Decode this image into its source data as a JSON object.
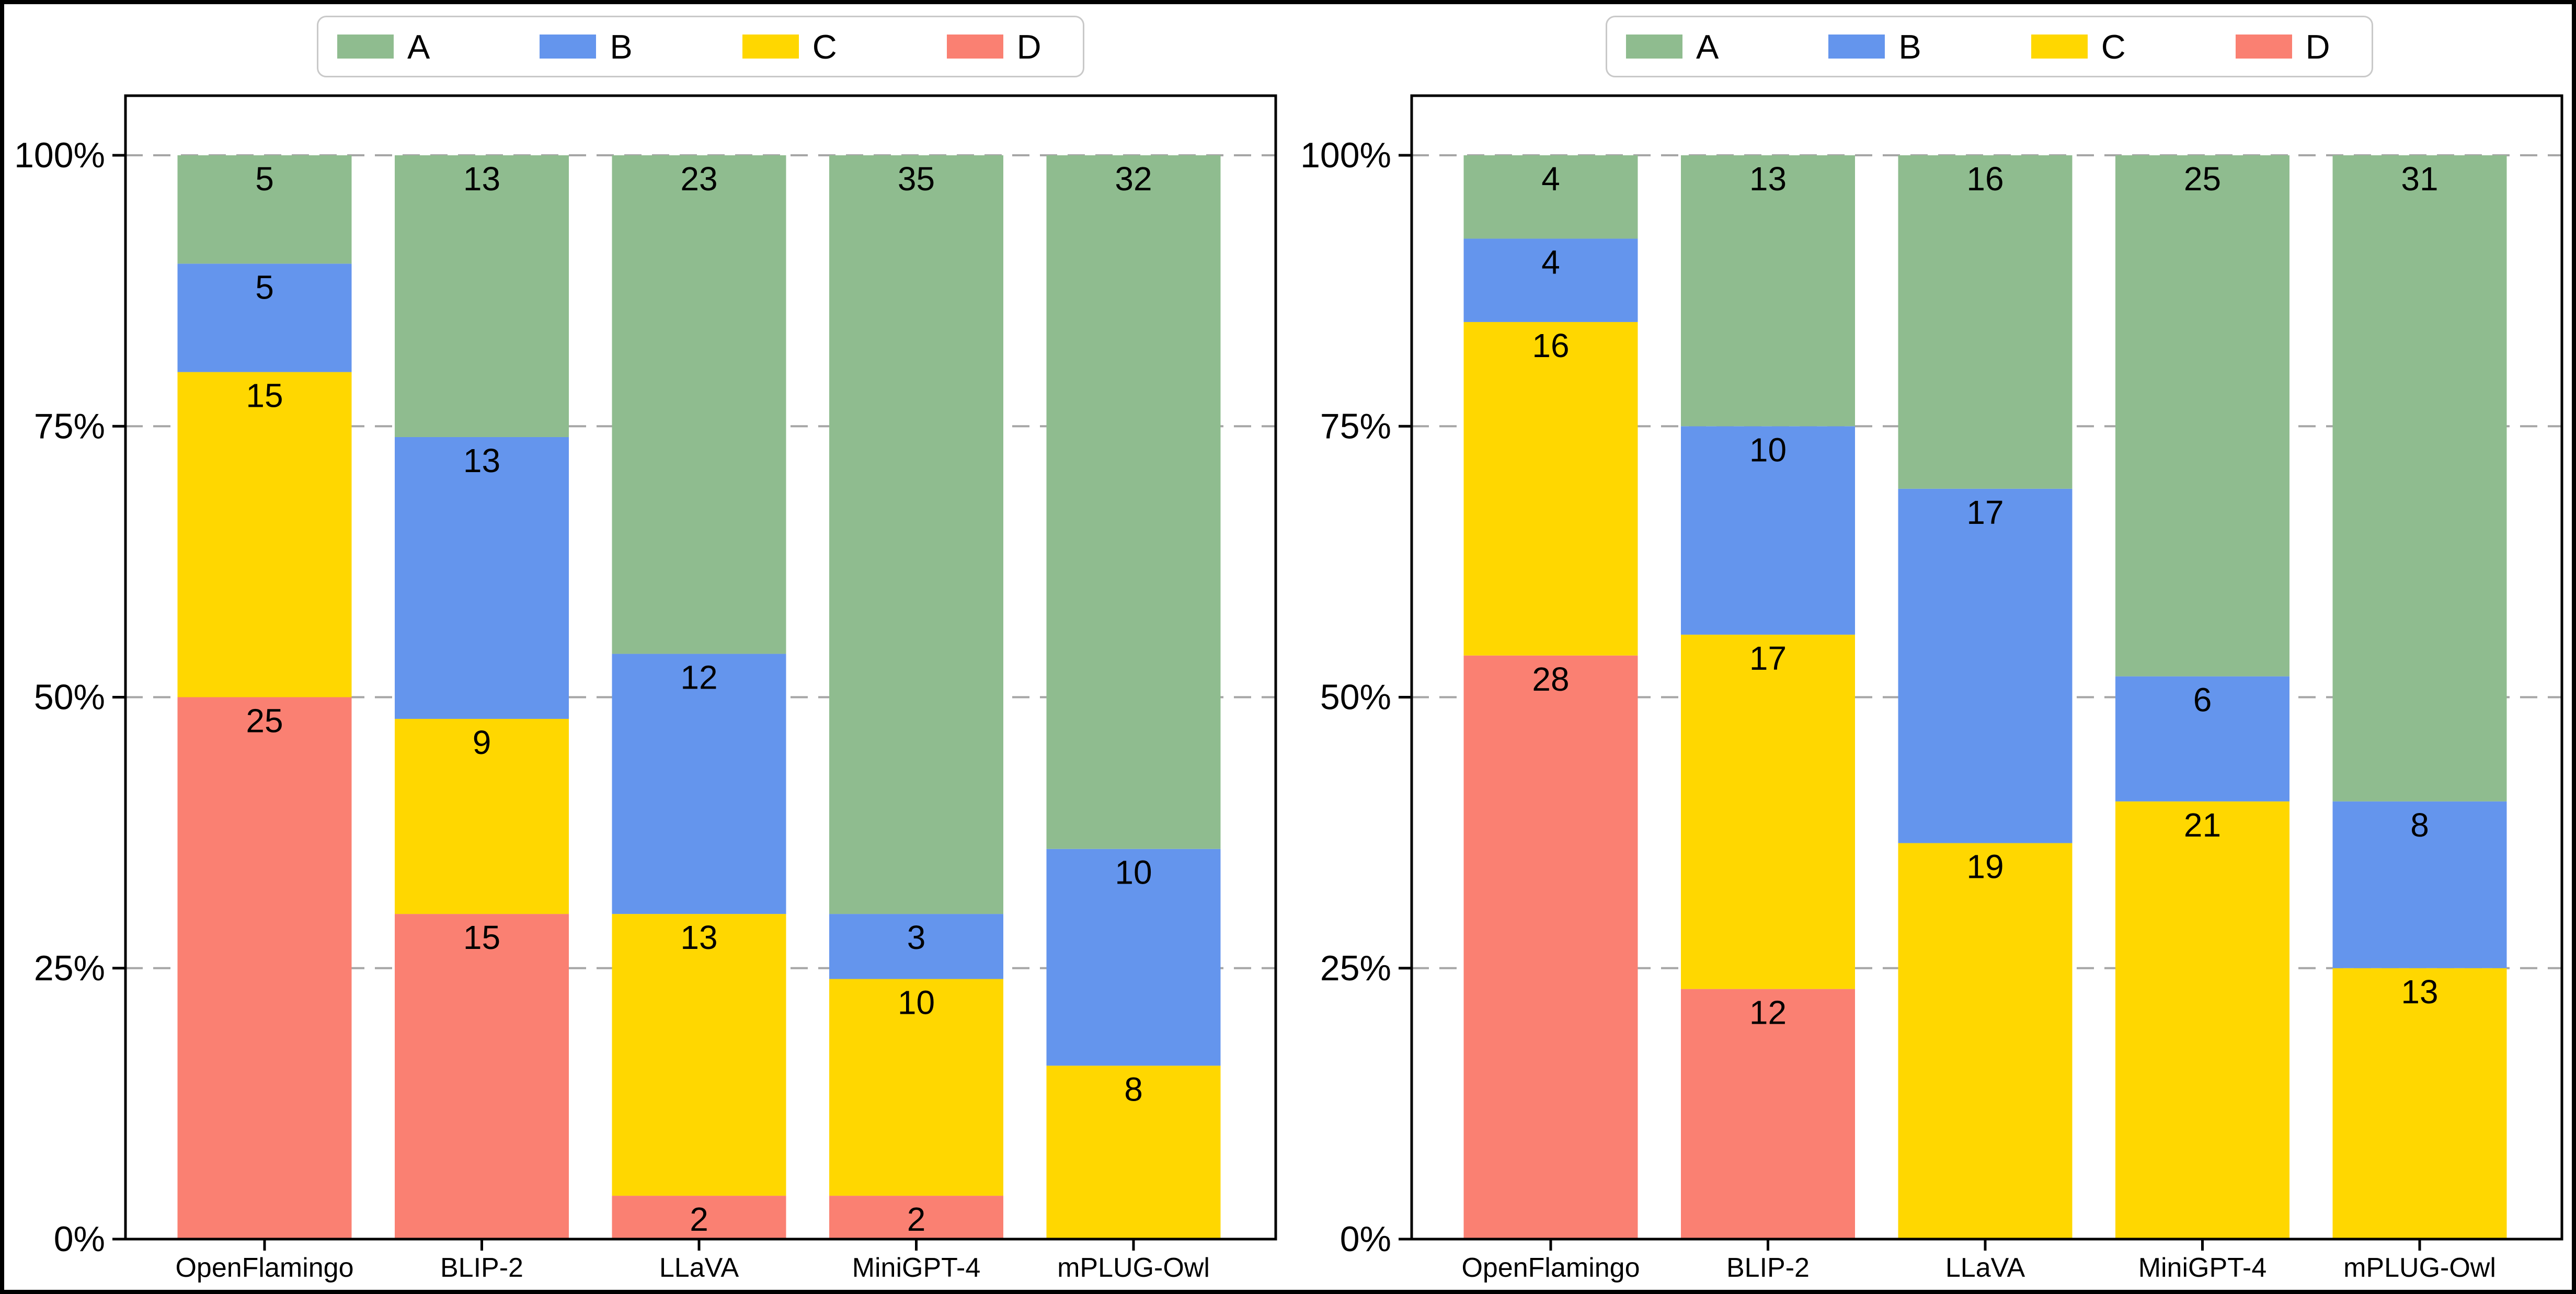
{
  "figure": {
    "background": "#ffffff",
    "border_color": "#000000"
  },
  "legend": {
    "labels": [
      "A",
      "B",
      "C",
      "D"
    ],
    "colors": [
      "#8fbc8f",
      "#6495ed",
      "#ffd700",
      "#fa8072"
    ],
    "position": "top-center"
  },
  "axis": {
    "yticks": [
      "0%",
      "25%",
      "50%",
      "75%",
      "100%"
    ],
    "ytick_percents": [
      0,
      25,
      50,
      75,
      100
    ],
    "grid_color": "#a6a6a6",
    "grid_style": "dashed",
    "spine_color": "#000000"
  },
  "chart_data": [
    {
      "type": "bar",
      "subtype": "stacked-percentage",
      "title": "",
      "xlabel": "",
      "ylabel": "",
      "categories": [
        "OpenFlamingo",
        "BLIP-2",
        "LLaVA",
        "MiniGPT-4",
        "mPLUG-Owl"
      ],
      "total_per_bar": 50,
      "ylim_percent": [
        0,
        105.5
      ],
      "grid": "horizontal dashed at 25/50/75/100%",
      "legend_position": "top-center",
      "stack_order_bottom_to_top": [
        "D",
        "C",
        "B",
        "A"
      ],
      "series": [
        {
          "name": "A",
          "color": "#8fbc8f",
          "values": [
            5,
            13,
            23,
            35,
            32
          ]
        },
        {
          "name": "B",
          "color": "#6495ed",
          "values": [
            5,
            13,
            12,
            3,
            10
          ]
        },
        {
          "name": "C",
          "color": "#ffd700",
          "values": [
            15,
            9,
            13,
            10,
            8
          ]
        },
        {
          "name": "D",
          "color": "#fa8072",
          "values": [
            25,
            15,
            2,
            2,
            0
          ]
        }
      ]
    },
    {
      "type": "bar",
      "subtype": "stacked-percentage",
      "title": "",
      "xlabel": "",
      "ylabel": "",
      "categories": [
        "OpenFlamingo",
        "BLIP-2",
        "LLaVA",
        "MiniGPT-4",
        "mPLUG-Owl"
      ],
      "total_per_bar": 52,
      "ylim_percent": [
        0,
        105.5
      ],
      "grid": "horizontal dashed at 25/50/75/100%",
      "legend_position": "top-center",
      "stack_order_bottom_to_top": [
        "D",
        "C",
        "B",
        "A"
      ],
      "series": [
        {
          "name": "A",
          "color": "#8fbc8f",
          "values": [
            4,
            13,
            16,
            25,
            31
          ]
        },
        {
          "name": "B",
          "color": "#6495ed",
          "values": [
            4,
            10,
            17,
            6,
            8
          ]
        },
        {
          "name": "C",
          "color": "#ffd700",
          "values": [
            16,
            17,
            19,
            21,
            13
          ]
        },
        {
          "name": "D",
          "color": "#fa8072",
          "values": [
            28,
            12,
            0,
            0,
            0
          ]
        }
      ]
    }
  ]
}
